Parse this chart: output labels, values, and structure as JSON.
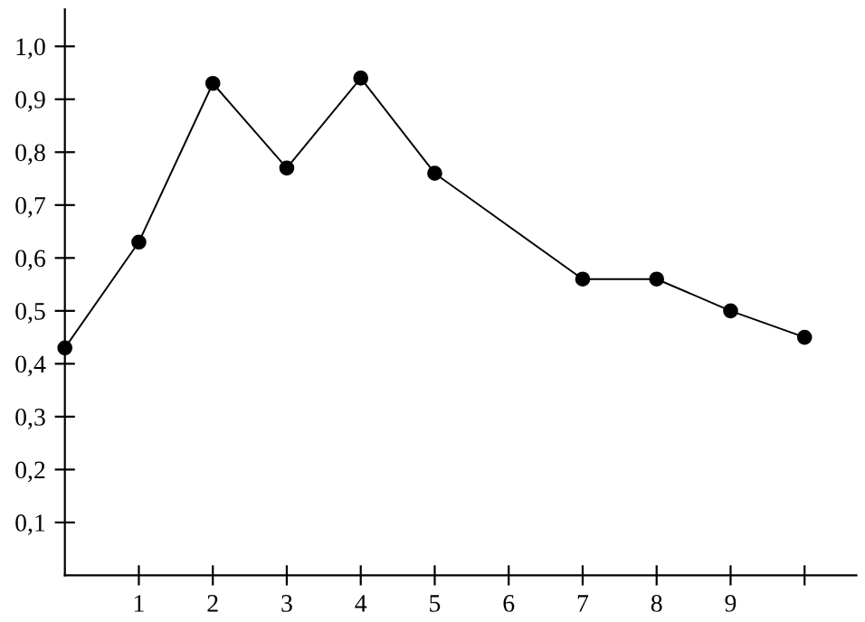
{
  "chart_data": {
    "type": "line",
    "x": [
      0,
      1,
      2,
      3,
      4,
      5,
      7,
      8,
      9,
      10
    ],
    "series": [
      {
        "color": "#000000",
        "values": [
          0.43,
          0.63,
          0.93,
          0.77,
          0.94,
          0.76,
          0.56,
          0.56,
          0.5,
          0.45
        ]
      }
    ],
    "xlim": [
      0,
      10.7
    ],
    "ylim": [
      0,
      1.07
    ],
    "xticks": [
      1,
      2,
      3,
      4,
      5,
      6,
      7,
      8,
      9,
      {
        "value": 10,
        "label": null
      }
    ],
    "yticks": [
      {
        "value": 0.1,
        "label": "0,1"
      },
      {
        "value": 0.2,
        "label": "0,2"
      },
      {
        "value": 0.3,
        "label": "0,3"
      },
      {
        "value": 0.4,
        "label": "0,4"
      },
      {
        "value": 0.5,
        "label": "0,5"
      },
      {
        "value": 0.6,
        "label": "0,6"
      },
      {
        "value": 0.7,
        "label": "0,7"
      },
      {
        "value": 0.8,
        "label": "0,8"
      },
      {
        "value": 0.9,
        "label": "0,9"
      },
      {
        "value": 1.0,
        "label": "1,0"
      }
    ],
    "marker": "circle",
    "line_style": "solid",
    "grid": false,
    "legend": false
  }
}
